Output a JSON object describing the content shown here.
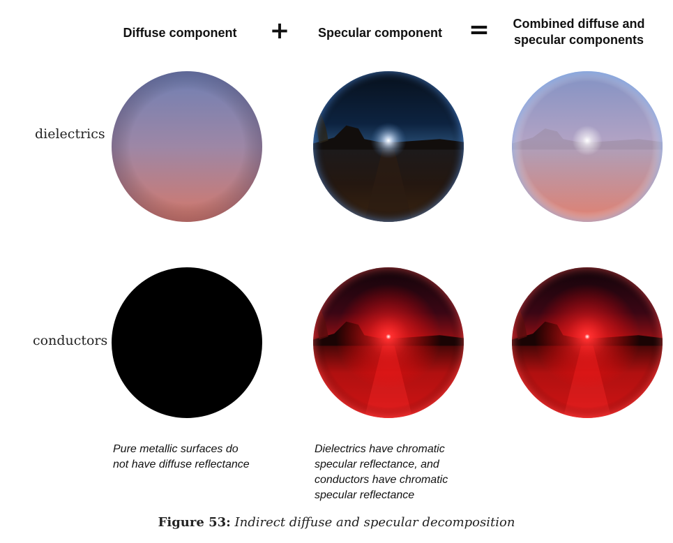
{
  "headers": {
    "diffuse": "Diffuse component",
    "plus": "+",
    "specular": "Specular component",
    "equals": "=",
    "combined_line1": "Combined diffuse and",
    "combined_line2": "specular components"
  },
  "rows": {
    "dielectrics": "dielectrics",
    "conductors": "conductors"
  },
  "notes": {
    "metallic": [
      "Pure metallic surfaces do",
      "not have diffuse reflectance"
    ],
    "chromatic": [
      "Dielectrics have chromatic",
      "specular reflectance, and",
      "conductors have chromatic",
      "specular reflectance"
    ]
  },
  "caption": {
    "label": "Figure 53:",
    "text": "Indirect diffuse and specular decomposition"
  },
  "colors": {
    "diffuse_top": "#6f7fb3",
    "diffuse_mid": "#9d87a6",
    "diffuse_bottom": "#d4786a",
    "conductor_red": "#ff1a1a",
    "sun": "#ffffff"
  }
}
